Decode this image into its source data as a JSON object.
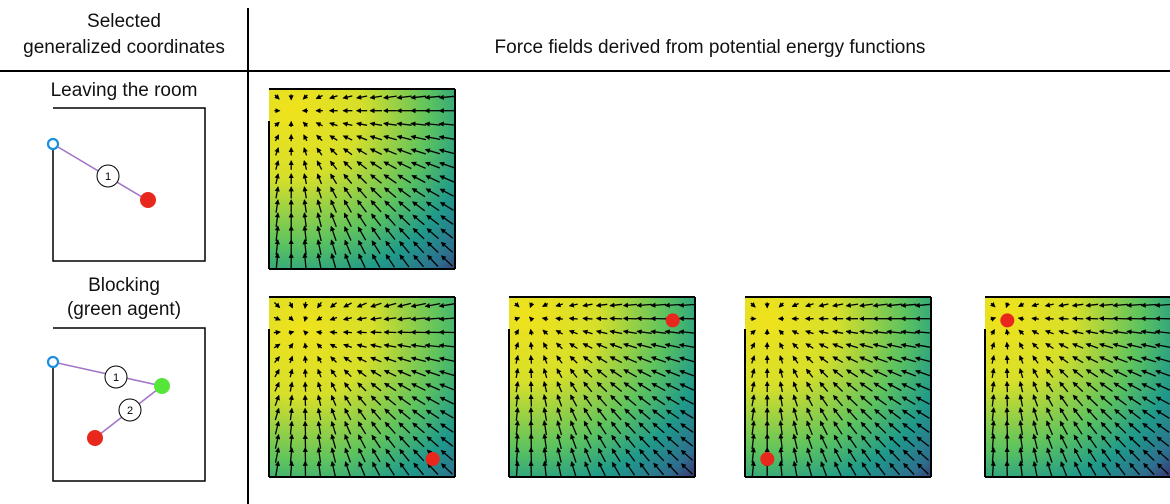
{
  "header": {
    "left_title_line1": "Selected",
    "left_title_line2": "generalized coordinates",
    "right_title": "Force fields derived from potential energy functions"
  },
  "rows": [
    {
      "title_line1": "Leaving the room",
      "title_line2": "",
      "edge_labels": [
        "1"
      ],
      "field_count": 1
    },
    {
      "title_line1": "Blocking",
      "title_line2": "(green agent)",
      "edge_labels": [
        "1",
        "2"
      ],
      "field_count": 4
    }
  ],
  "colors": {
    "door": "#1a8fe0",
    "agent_red": "#e8281c",
    "agent_green": "#55e63a",
    "link": "#a276c9",
    "field_high": "#f0e21c",
    "field_mid": "#3fae78",
    "field_low": "#440a5a"
  }
}
